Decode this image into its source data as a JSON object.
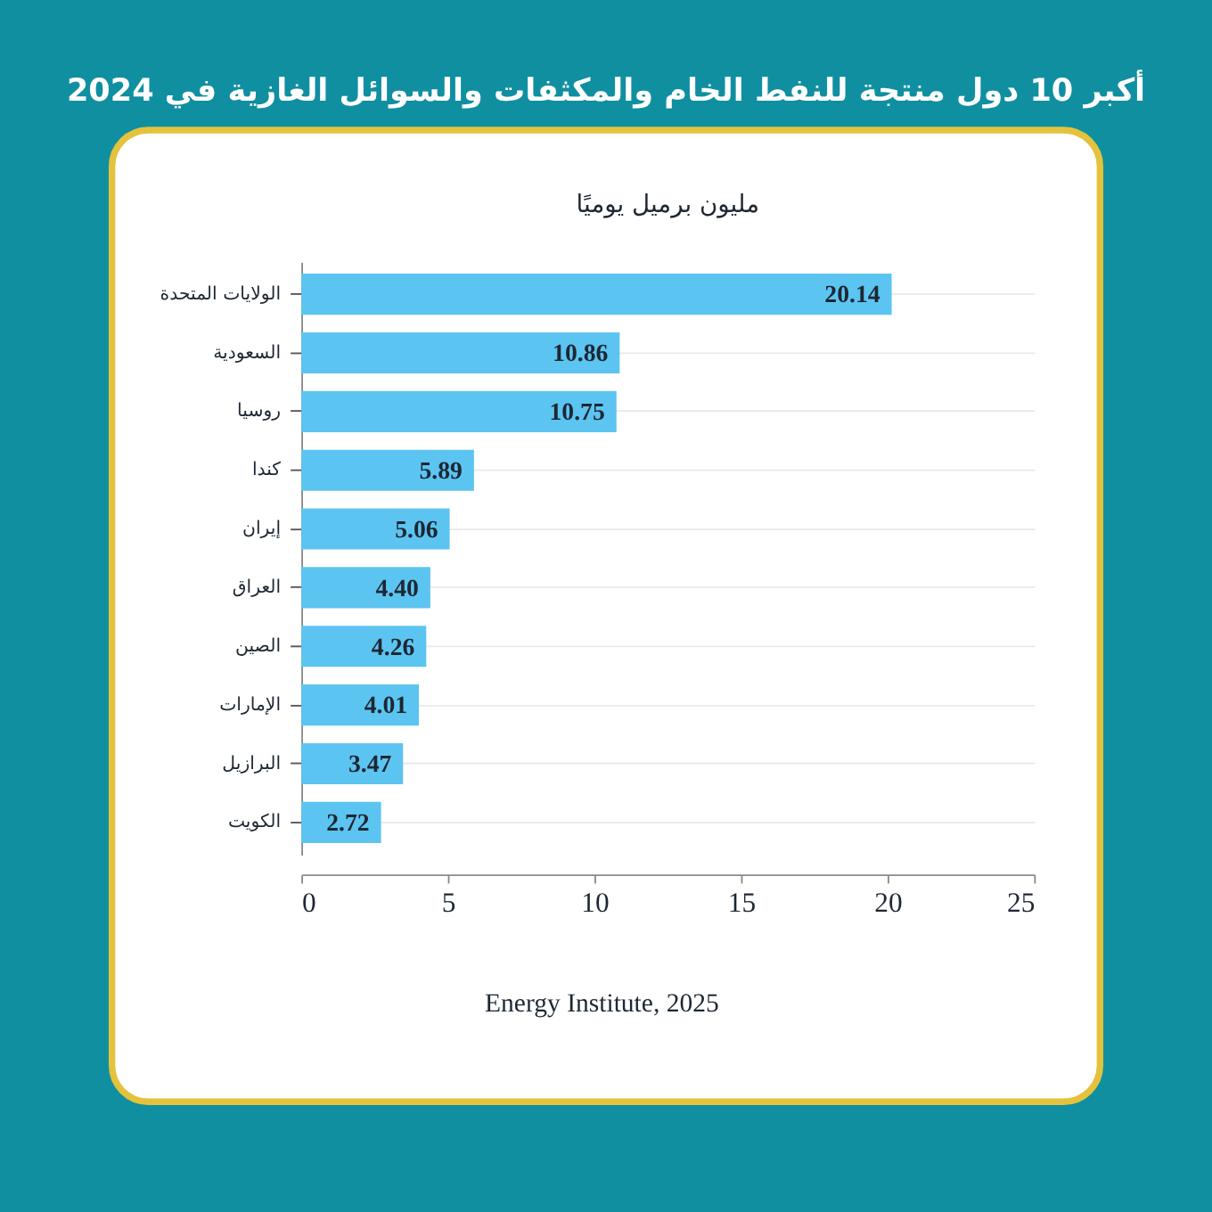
{
  "chart_data": {
    "type": "bar",
    "orientation": "horizontal",
    "title": "أكبر 10 دول منتجة للنفط الخام والمكثفات والسوائل الغازية في 2024",
    "subtitle": "مليون برميل يوميًا",
    "categories": [
      "الولايات المتحدة",
      "السعودية",
      "روسيا",
      "كندا",
      "إيران",
      "العراق",
      "الصين",
      "الإمارات",
      "البرازيل",
      "الكويت"
    ],
    "values": [
      20.14,
      10.86,
      10.75,
      5.89,
      5.06,
      4.4,
      4.26,
      4.01,
      3.47,
      2.72
    ],
    "value_labels": [
      "20.14",
      "10.86",
      "10.75",
      "5.89",
      "5.06",
      "4.40",
      "4.26",
      "4.01",
      "3.47",
      "2.72"
    ],
    "color": "#5cc4f1",
    "xlim": [
      0,
      25
    ],
    "xticks": [
      0,
      5,
      10,
      15,
      20,
      25
    ],
    "grid": "y",
    "annotations": [
      "Energy Institute, 2025"
    ]
  }
}
